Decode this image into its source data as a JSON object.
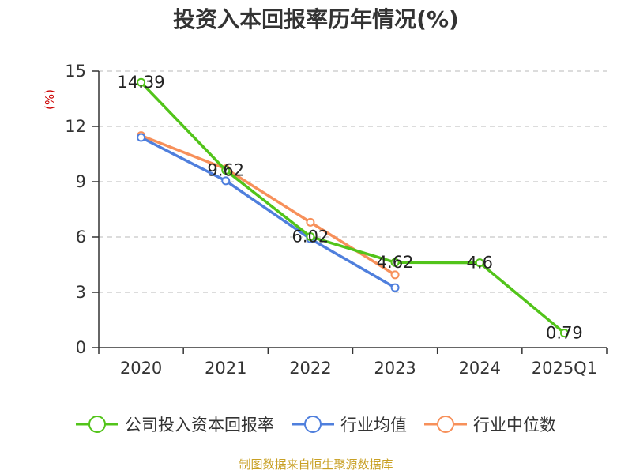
{
  "chart_data": {
    "type": "line",
    "title": "投资入本回报率历年情况(%)",
    "unit": "(%)",
    "categories": [
      "2020",
      "2021",
      "2022",
      "2023",
      "2024",
      "2025Q1"
    ],
    "ylim": [
      0,
      15
    ],
    "yticks": [
      "0",
      "3",
      "6",
      "9",
      "12",
      "15"
    ],
    "grid": true,
    "legend_position": "bottom",
    "series": [
      {
        "name": "公司投入资本回报率",
        "color": "#52c41a",
        "values": [
          14.39,
          9.62,
          6.02,
          4.62,
          4.6,
          0.79
        ],
        "labels": [
          "14.39",
          "9.62",
          "6.02",
          "4.62",
          "4.6",
          "0.79"
        ]
      },
      {
        "name": "行业均值",
        "color": "#4f7fdd",
        "values": [
          11.4,
          9.05,
          5.9,
          3.25,
          null,
          null
        ]
      },
      {
        "name": "行业中位数",
        "color": "#f7905a",
        "values": [
          11.5,
          9.7,
          6.8,
          3.95,
          null,
          null
        ]
      }
    ],
    "source": "制图数据来自恒生聚源数据库"
  }
}
